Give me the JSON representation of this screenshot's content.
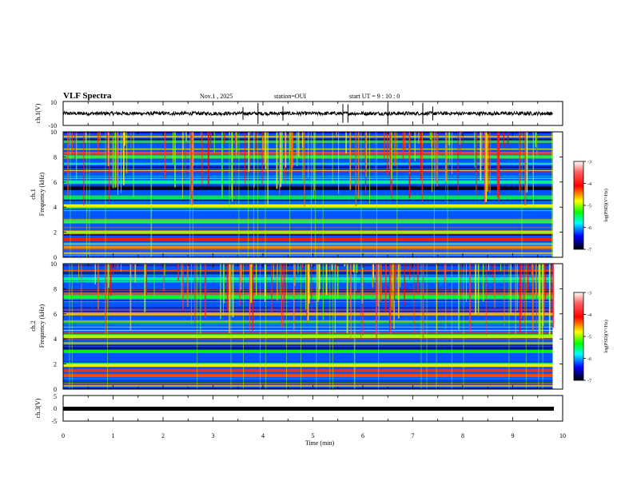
{
  "header": {
    "title": "VLF Spectra",
    "date": "Nov.1  , 2025",
    "station": "station=OUI",
    "start_ut": "start  UT  =   9  : 10 : 0"
  },
  "colorbar": {
    "label": "log(PSD)(V²/Hz)",
    "ticks": [
      "-3",
      "-4",
      "-5",
      "-6",
      "-7"
    ],
    "colors": [
      "#ffffff",
      "#ff0000",
      "#ffff00",
      "#00ff00",
      "#00ffff",
      "#0000ff",
      "#000000"
    ]
  },
  "chart_data": [
    {
      "type": "line",
      "name": "waveform-ch1",
      "ylabel": "ch.1(V)",
      "ylim": [
        -10,
        10
      ],
      "yticks": [
        "10",
        "-10"
      ],
      "x_range": [
        0,
        9.8
      ],
      "description_values": {
        "typical_amplitude": 1.5,
        "spike_times": [
          3.6,
          3.9,
          4.4,
          5.6,
          5.7,
          6.5,
          7.2,
          7.4
        ]
      }
    },
    {
      "type": "heatmap",
      "name": "spectrogram-ch1",
      "ylabel": "ch.1",
      "ylabel2": "Frequency (kHz)",
      "ylim": [
        0,
        10
      ],
      "yticks": [
        "0",
        "2",
        "4",
        "6",
        "8",
        "10"
      ],
      "x_range": [
        0,
        9.8
      ],
      "bands": [
        {
          "f": 0.8,
          "level": -4.5
        },
        {
          "f": 1.4,
          "level": -4.2
        },
        {
          "f": 2.0,
          "level": -5.0
        },
        {
          "f": 2.9,
          "level": -5.5
        },
        {
          "f": 4.1,
          "level": -4.8
        },
        {
          "f": 4.8,
          "level": -5.4
        },
        {
          "f": 5.5,
          "level": -7.0
        },
        {
          "f": 6.0,
          "level": -5.6
        },
        {
          "f": 8.0,
          "level": -5.2
        }
      ]
    },
    {
      "type": "heatmap",
      "name": "spectrogram-ch2",
      "ylabel": "ch.2",
      "ylabel2": "Frequency (kHz)",
      "ylim": [
        0,
        10
      ],
      "yticks": [
        "0",
        "2",
        "4",
        "6",
        "8",
        "10"
      ],
      "x_range": [
        0,
        9.8
      ],
      "bands": [
        {
          "f": 1.1,
          "level": -4.3
        },
        {
          "f": 1.9,
          "level": -4.8
        },
        {
          "f": 3.0,
          "level": -5.3
        },
        {
          "f": 4.2,
          "level": -4.9
        },
        {
          "f": 6.0,
          "level": -4.6
        },
        {
          "f": 7.3,
          "level": -5.4
        },
        {
          "f": 8.8,
          "level": -5.6
        }
      ]
    },
    {
      "type": "line",
      "name": "waveform-ch3",
      "ylabel": "ch.3(V)",
      "ylim": [
        -5,
        5
      ],
      "yticks": [
        "5",
        "0",
        "-5"
      ],
      "x_range": [
        0,
        9.8
      ],
      "values_const": -0.3
    }
  ],
  "xaxis": {
    "label": "Time  (min)",
    "range": [
      0,
      10
    ],
    "ticks": [
      "0",
      "1",
      "2",
      "3",
      "4",
      "5",
      "6",
      "7",
      "8",
      "9",
      "10"
    ]
  }
}
